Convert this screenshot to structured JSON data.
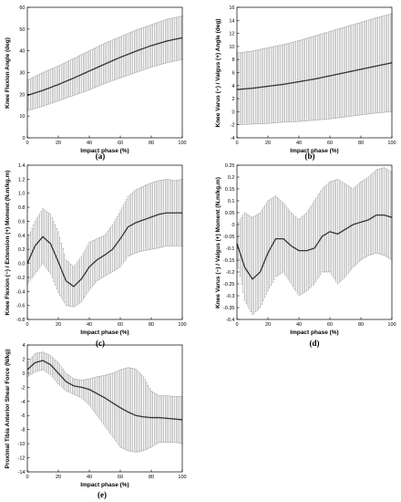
{
  "figure": {
    "background": "#ffffff",
    "line_color": "#333333",
    "errorbar_color": "#7a7a7a"
  },
  "chart_data": [
    {
      "type": "line",
      "panel_label": "(a)",
      "xlabel": "Impact phase (%)",
      "ylabel": "Knee Flexion Angle (deg)",
      "xlim": [
        0,
        100
      ],
      "ylim": [
        0,
        60
      ],
      "xticks": [
        "0",
        "20",
        "40",
        "60",
        "80",
        "100"
      ],
      "yticks": [
        "0",
        "10",
        "20",
        "30",
        "40",
        "50",
        "60"
      ],
      "series": [
        {
          "x": [
            0,
            10,
            20,
            30,
            40,
            50,
            60,
            70,
            80,
            90,
            100
          ],
          "y": [
            19.5,
            21.8,
            24.5,
            27.5,
            30.7,
            33.9,
            37.0,
            39.8,
            42.4,
            44.5,
            46.0
          ],
          "upper": [
            26.5,
            30.0,
            33.0,
            36.5,
            40.0,
            43.5,
            46.5,
            49.5,
            52.0,
            54.5,
            56.0
          ],
          "lower": [
            12.5,
            14.5,
            17.0,
            19.5,
            22.0,
            25.0,
            27.5,
            30.0,
            32.5,
            34.5,
            36.0
          ]
        }
      ]
    },
    {
      "type": "line",
      "panel_label": "(b)",
      "xlabel": "Impact phase (%)",
      "ylabel": "Knee Varus (−) / Valgus (+) Angle (deg)",
      "xlim": [
        0,
        100
      ],
      "ylim": [
        -4,
        16
      ],
      "xticks": [
        "0",
        "20",
        "40",
        "60",
        "80",
        "100"
      ],
      "yticks": [
        "-4",
        "-2",
        "0",
        "2",
        "4",
        "6",
        "8",
        "10",
        "12",
        "14",
        "16"
      ],
      "series": [
        {
          "x": [
            0,
            10,
            20,
            30,
            40,
            50,
            60,
            70,
            80,
            90,
            100
          ],
          "y": [
            3.4,
            3.6,
            3.9,
            4.2,
            4.6,
            5.0,
            5.5,
            6.0,
            6.5,
            7.0,
            7.5
          ],
          "upper": [
            9.0,
            9.3,
            9.8,
            10.3,
            10.9,
            11.6,
            12.3,
            13.0,
            13.7,
            14.4,
            15.0
          ],
          "lower": [
            -2.0,
            -1.9,
            -1.8,
            -1.6,
            -1.5,
            -1.3,
            -1.1,
            -0.8,
            -0.5,
            -0.2,
            0.0
          ]
        }
      ]
    },
    {
      "type": "line",
      "panel_label": "(c)",
      "xlabel": "Impact phase (%)",
      "ylabel": "Knee Flexion (−) / Extension (+) Moment (N.m/kg.m)",
      "xlim": [
        0,
        100
      ],
      "ylim": [
        -0.8,
        1.4
      ],
      "xticks": [
        "0",
        "20",
        "40",
        "60",
        "80",
        "100"
      ],
      "yticks": [
        "-0.8",
        "-0.6",
        "-0.4",
        "-0.2",
        "0.0",
        "0.2",
        "0.4",
        "0.6",
        "0.8",
        "1.0",
        "1.2",
        "1.4"
      ],
      "series": [
        {
          "x": [
            0,
            5,
            10,
            15,
            20,
            25,
            30,
            35,
            40,
            45,
            50,
            55,
            60,
            65,
            70,
            75,
            80,
            85,
            90,
            95,
            100
          ],
          "y": [
            0.0,
            0.25,
            0.38,
            0.28,
            0.02,
            -0.25,
            -0.33,
            -0.22,
            -0.05,
            0.05,
            0.12,
            0.2,
            0.35,
            0.52,
            0.58,
            0.62,
            0.66,
            0.7,
            0.72,
            0.72,
            0.72
          ],
          "upper": [
            0.35,
            0.6,
            0.78,
            0.7,
            0.45,
            0.05,
            -0.05,
            0.1,
            0.3,
            0.35,
            0.4,
            0.55,
            0.75,
            0.95,
            1.05,
            1.1,
            1.15,
            1.18,
            1.2,
            1.18,
            1.2
          ],
          "lower": [
            -0.3,
            -0.15,
            0.0,
            -0.15,
            -0.42,
            -0.6,
            -0.62,
            -0.55,
            -0.38,
            -0.25,
            -0.18,
            -0.12,
            -0.05,
            0.1,
            0.15,
            0.18,
            0.2,
            0.22,
            0.25,
            0.25,
            0.25
          ]
        }
      ]
    },
    {
      "type": "line",
      "panel_label": "(d)",
      "xlabel": "Impact phase (%)",
      "ylabel": "Knee Varus (−) / Valgus (+) Moment (N.m/kg.m)",
      "xlim": [
        0,
        100
      ],
      "ylim": [
        -0.4,
        0.25
      ],
      "xticks": [
        "0",
        "20",
        "40",
        "60",
        "80",
        "100"
      ],
      "yticks": [
        "-0.4",
        "-0.35",
        "-0.3",
        "-0.25",
        "-0.2",
        "-0.15",
        "-0.1",
        "-0.05",
        "0",
        "0.05",
        "0.1",
        "0.15",
        "0.2",
        "0.25"
      ],
      "series": [
        {
          "x": [
            0,
            5,
            10,
            15,
            20,
            25,
            30,
            35,
            40,
            45,
            50,
            55,
            60,
            65,
            70,
            75,
            80,
            85,
            90,
            95,
            100
          ],
          "y": [
            -0.08,
            -0.18,
            -0.23,
            -0.2,
            -0.12,
            -0.06,
            -0.06,
            -0.09,
            -0.11,
            -0.11,
            -0.1,
            -0.05,
            -0.03,
            -0.04,
            -0.02,
            0.0,
            0.01,
            0.02,
            0.04,
            0.04,
            0.03
          ],
          "upper": [
            0.0,
            0.05,
            0.03,
            0.05,
            0.1,
            0.12,
            0.09,
            0.05,
            0.02,
            0.05,
            0.1,
            0.15,
            0.18,
            0.19,
            0.17,
            0.15,
            0.18,
            0.2,
            0.23,
            0.24,
            0.22
          ],
          "lower": [
            -0.15,
            -0.32,
            -0.38,
            -0.35,
            -0.28,
            -0.22,
            -0.2,
            -0.25,
            -0.3,
            -0.28,
            -0.25,
            -0.2,
            -0.2,
            -0.25,
            -0.22,
            -0.18,
            -0.15,
            -0.13,
            -0.12,
            -0.13,
            -0.15
          ]
        }
      ]
    },
    {
      "type": "line",
      "panel_label": "(e)",
      "xlabel": "Impact phase (%)",
      "ylabel": "Proximal Tibia Anterior Shear Force (N/kg)",
      "xlim": [
        0,
        100
      ],
      "ylim": [
        -14,
        4
      ],
      "xticks": [
        "0",
        "20",
        "40",
        "60",
        "80",
        "100"
      ],
      "yticks": [
        "-14",
        "-12",
        "-10",
        "-8",
        "-6",
        "-4",
        "-2",
        "0",
        "2",
        "4"
      ],
      "series": [
        {
          "x": [
            0,
            5,
            10,
            15,
            20,
            25,
            30,
            35,
            40,
            45,
            50,
            55,
            60,
            65,
            70,
            75,
            80,
            85,
            90,
            95,
            100
          ],
          "y": [
            0.5,
            1.5,
            1.8,
            1.2,
            0.0,
            -1.2,
            -1.8,
            -2.0,
            -2.3,
            -2.9,
            -3.5,
            -4.2,
            -4.9,
            -5.5,
            -6.0,
            -6.2,
            -6.3,
            -6.3,
            -6.4,
            -6.5,
            -6.6
          ],
          "upper": [
            1.5,
            2.8,
            3.0,
            2.5,
            1.5,
            0.0,
            -0.8,
            -1.0,
            -0.8,
            -0.5,
            -0.3,
            0.0,
            0.5,
            0.8,
            0.6,
            -0.5,
            -2.5,
            -3.2,
            -3.2,
            -3.3,
            -3.3
          ],
          "lower": [
            -0.5,
            0.2,
            0.5,
            -0.2,
            -1.5,
            -2.5,
            -3.0,
            -3.5,
            -4.5,
            -6.0,
            -7.5,
            -9.0,
            -10.5,
            -11.0,
            -11.2,
            -11.0,
            -10.5,
            -9.8,
            -9.8,
            -9.8,
            -10.0
          ]
        }
      ]
    }
  ]
}
